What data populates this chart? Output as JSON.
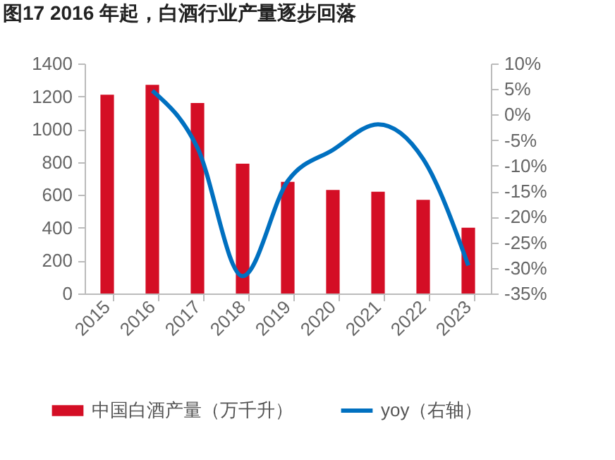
{
  "chart_data": {
    "type": "bar",
    "title": "图17  2016 年起，白酒行业产量逐步回落",
    "categories": [
      "2015",
      "2016",
      "2017",
      "2018",
      "2019",
      "2020",
      "2021",
      "2022",
      "2023"
    ],
    "series": [
      {
        "name": "中国白酒产量（万千升）",
        "color": "#d40e25",
        "values": [
          1210,
          1270,
          1160,
          790,
          680,
          630,
          620,
          570,
          400
        ]
      },
      {
        "name": "yoy（右轴）",
        "type": "line",
        "axis": "y2",
        "color": "#0070c0",
        "values": [
          null,
          4.7,
          -6.5,
          -31.6,
          -13,
          -6.9,
          -1.9,
          -8.7,
          -29.5
        ]
      }
    ],
    "ylim": [
      0,
      1400
    ],
    "yticks": [
      0,
      200,
      400,
      600,
      800,
      1000,
      1200,
      1400
    ],
    "y2lim": [
      -35,
      10
    ],
    "y2ticks": [
      {
        "value": -35,
        "label": "-35%"
      },
      {
        "value": -30,
        "label": "-30%"
      },
      {
        "value": -25,
        "label": "-25%"
      },
      {
        "value": -20,
        "label": "-20%"
      },
      {
        "value": -15,
        "label": "-15%"
      },
      {
        "value": -10,
        "label": "-10%"
      },
      {
        "value": -5,
        "label": "-5%"
      },
      {
        "value": 0,
        "label": "0%"
      },
      {
        "value": 5,
        "label": "5%"
      },
      {
        "value": 10,
        "label": "10%"
      }
    ],
    "legend": "bottom",
    "grid": false
  }
}
